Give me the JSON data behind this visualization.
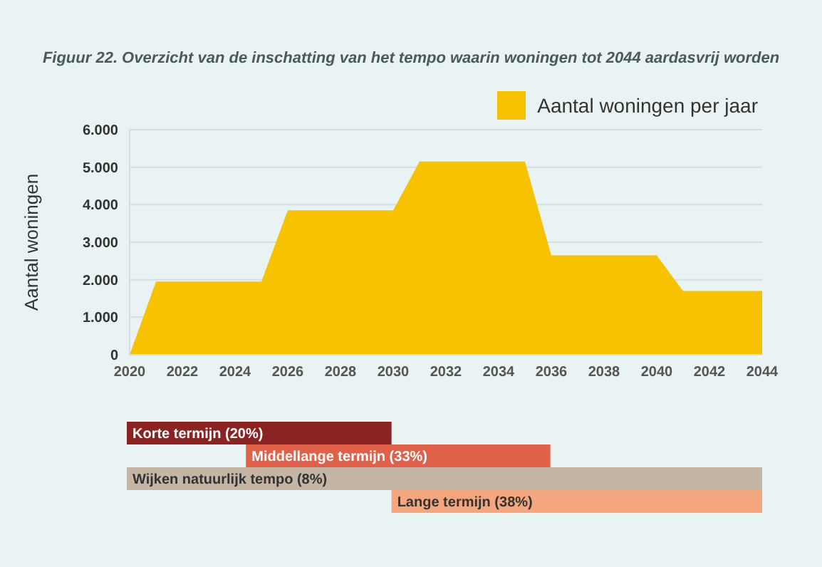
{
  "chart_data": [
    {
      "type": "area",
      "title": "Figuur 22. Overzicht van de inschatting van het tempo waarin woningen tot 2044 aardasvrij worden",
      "ylabel": "Aantal woningen",
      "x": [
        2020,
        2021,
        2025,
        2026,
        2030,
        2031,
        2035,
        2036,
        2040,
        2041,
        2044
      ],
      "series": [
        {
          "name": "Aantal woningen per jaar",
          "color": "#f7c200",
          "values": [
            0,
            1950,
            1950,
            3850,
            3850,
            5150,
            5150,
            2650,
            2650,
            1700,
            1700
          ]
        }
      ],
      "xlim": [
        2020,
        2044
      ],
      "xticks": [
        2020,
        2022,
        2024,
        2026,
        2028,
        2030,
        2032,
        2034,
        2036,
        2038,
        2040,
        2042,
        2044
      ],
      "ylim": [
        0,
        6000
      ],
      "yticks": [
        {
          "value": 0,
          "label": "0"
        },
        {
          "value": 1000,
          "label": "1.000"
        },
        {
          "value": 2000,
          "label": "2.000"
        },
        {
          "value": 3000,
          "label": "3.000"
        },
        {
          "value": 4000,
          "label": "4.000"
        },
        {
          "value": 5000,
          "label": "5.000"
        },
        {
          "value": 6000,
          "label": "6.000"
        }
      ],
      "grid": "y",
      "legend": "top right"
    },
    {
      "type": "bar",
      "orientation": "horizontal",
      "categories": [
        "Korte termijn (20%)",
        "Middellange termijn (33%)",
        "Wijken natuurlijk tempo (8%)",
        "Lange termijn (38%)"
      ],
      "values": [
        10,
        11.5,
        24,
        14
      ],
      "base": [
        2020,
        2024.5,
        2020,
        2030
      ],
      "colors": [
        "#8b2323",
        "#e0604a",
        "#c4b5a5",
        "#f4a67f"
      ],
      "xlim": [
        2020,
        2044
      ],
      "tick_labels": false
    }
  ]
}
